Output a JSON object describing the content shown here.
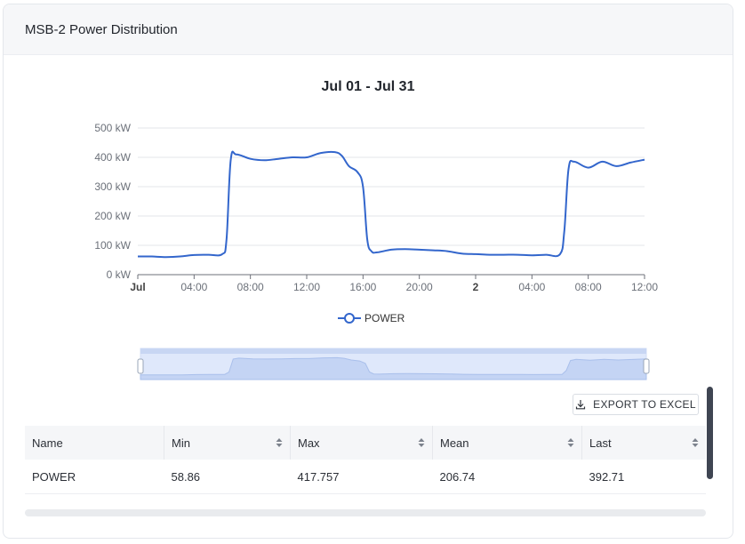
{
  "panel": {
    "title": "MSB-2 Power Distribution"
  },
  "chart_data": {
    "type": "line",
    "title": "Jul 01 - Jul 31",
    "y_unit": "kW",
    "ylim": [
      0,
      500
    ],
    "y_ticks": [
      "0 kW",
      "100 kW",
      "200 kW",
      "300 kW",
      "400 kW",
      "500 kW"
    ],
    "x_ticks": [
      "Jul",
      "04:00",
      "08:00",
      "12:00",
      "16:00",
      "20:00",
      "2",
      "04:00",
      "08:00",
      "12:00"
    ],
    "x_ticks_bold": [
      "Jul",
      "2"
    ],
    "xlim_hours": [
      0,
      36
    ],
    "grid": true,
    "legend_position": "bottom",
    "color": "#3366cc",
    "series": [
      {
        "name": "POWER",
        "x_hours": [
          0,
          1,
          2,
          3,
          4,
          5,
          6,
          6.3,
          6.6,
          7,
          8,
          9,
          10,
          11,
          12,
          13,
          14,
          14.5,
          15,
          15.6,
          16,
          16.3,
          16.6,
          17,
          18,
          19,
          20,
          21,
          22,
          23,
          24,
          25,
          26,
          27,
          28,
          29,
          30,
          30.3,
          30.6,
          31,
          32,
          33,
          34,
          35,
          36
        ],
        "values": [
          62,
          62,
          60,
          62,
          67,
          68,
          70,
          120,
          390,
          410,
          395,
          390,
          395,
          400,
          400,
          415,
          418,
          405,
          370,
          350,
          300,
          120,
          80,
          76,
          85,
          87,
          85,
          83,
          80,
          72,
          70,
          68,
          68,
          68,
          66,
          68,
          70,
          150,
          360,
          385,
          365,
          385,
          370,
          382,
          392
        ]
      }
    ]
  },
  "export": {
    "label": "EXPORT TO EXCEL",
    "icon": "download-icon"
  },
  "table": {
    "columns": [
      "Name",
      "Min",
      "Max",
      "Mean",
      "Last"
    ],
    "rows": [
      [
        "POWER",
        "58.86",
        "417.757",
        "206.74",
        "392.71"
      ]
    ]
  }
}
